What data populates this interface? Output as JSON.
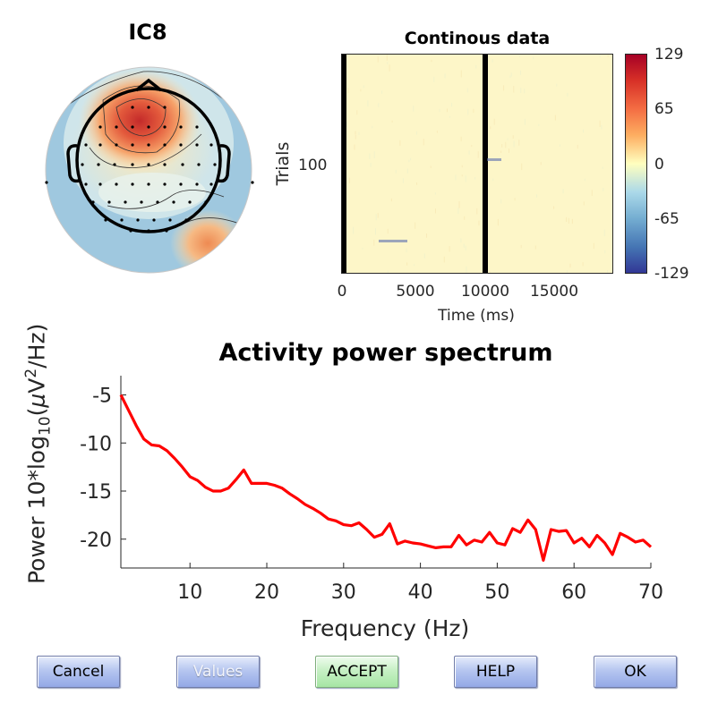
{
  "topoplot": {
    "title": "IC8"
  },
  "continuous": {
    "title": "Continous data",
    "ylabel": "Trials",
    "xlabel": "Time (ms)",
    "xticks": [
      "0",
      "5000",
      "10000",
      "15000"
    ],
    "yticks": [
      "100"
    ],
    "colorbar_ticks": [
      "129",
      "65",
      "0",
      "-65",
      "-129"
    ]
  },
  "chart_data": {
    "type": "line",
    "title": "Activity power spectrum",
    "xlabel": "Frequency (Hz)",
    "ylabel_parts": {
      "p1": "Power 10*log",
      "sub": "10",
      "p2": "(",
      "mu": "μ",
      "p3": "V",
      "sup": "2",
      "p4": "/Hz)"
    },
    "xlim": [
      1,
      70
    ],
    "ylim": [
      -23,
      -3
    ],
    "xticks": [
      10,
      20,
      30,
      40,
      50,
      60,
      70
    ],
    "yticks": [
      -5,
      -10,
      -15,
      -20
    ],
    "color": "#ff0000",
    "x": [
      1,
      2,
      3,
      4,
      5,
      6,
      7,
      8,
      9,
      10,
      11,
      12,
      13,
      14,
      15,
      16,
      17,
      18,
      19,
      20,
      21,
      22,
      23,
      24,
      25,
      26,
      27,
      28,
      29,
      30,
      31,
      32,
      33,
      34,
      35,
      36,
      37,
      38,
      39,
      40,
      41,
      42,
      43,
      44,
      45,
      46,
      47,
      48,
      49,
      50,
      51,
      52,
      53,
      54,
      55,
      56,
      57,
      58,
      59,
      60,
      61,
      62,
      63,
      64,
      65,
      66,
      67,
      68,
      69,
      70
    ],
    "y": [
      -5.0,
      -6.6,
      -8.2,
      -9.6,
      -10.2,
      -10.3,
      -10.8,
      -11.6,
      -12.5,
      -13.5,
      -13.9,
      -14.6,
      -15.0,
      -15.0,
      -14.7,
      -13.8,
      -12.8,
      -14.2,
      -14.2,
      -14.2,
      -14.4,
      -14.7,
      -15.3,
      -15.8,
      -16.4,
      -16.8,
      -17.3,
      -17.9,
      -18.1,
      -18.5,
      -18.6,
      -18.3,
      -19.0,
      -19.8,
      -19.5,
      -18.4,
      -20.5,
      -20.2,
      -20.4,
      -20.5,
      -20.7,
      -20.9,
      -20.8,
      -20.8,
      -19.6,
      -20.6,
      -20.1,
      -20.3,
      -19.3,
      -20.4,
      -20.6,
      -18.9,
      -19.3,
      -18.0,
      -19.0,
      -22.2,
      -19.0,
      -19.2,
      -19.1,
      -20.4,
      -19.9,
      -20.8,
      -19.6,
      -20.4,
      -21.6,
      -19.4,
      -19.8,
      -20.3,
      -20.1,
      -20.8
    ]
  },
  "buttons": {
    "cancel": "Cancel",
    "values": "Values",
    "accept": "ACCEPT",
    "help": "HELP",
    "ok": "OK"
  }
}
